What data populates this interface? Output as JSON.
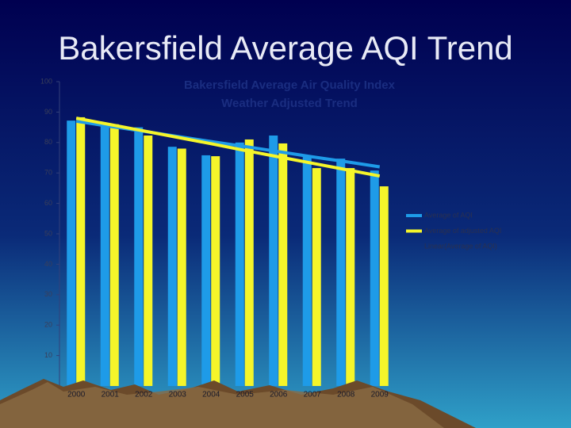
{
  "slide_title": "Bakersfield Average AQI Trend",
  "chart_data": {
    "type": "bar",
    "title": "Bakersfield Average Air Quality Index",
    "subtitle": "Weather Adjusted Trend",
    "categories": [
      "2000",
      "2001",
      "2002",
      "2003",
      "2004",
      "2005",
      "2006",
      "2007",
      "2008",
      "2009"
    ],
    "series": [
      {
        "name": "Average of AQI",
        "color": "#1e9be8",
        "type": "bar",
        "values": [
          87.2,
          85.7,
          85,
          78.6,
          75.8,
          80,
          82.3,
          75.5,
          74.7,
          70.8
        ]
      },
      {
        "name": "Average of adjusted AQI",
        "color": "#f5f52a",
        "type": "bar",
        "values": [
          88.3,
          86,
          82.3,
          78,
          75.5,
          81,
          79.7,
          71.6,
          71.6,
          65.6
        ]
      },
      {
        "name": "Linear(Average of AQI)",
        "color": "#1e9be8",
        "type": "line",
        "values": [
          87,
          85.3,
          83.7,
          82,
          80.3,
          78.7,
          77,
          75.3,
          73.7,
          72
        ]
      },
      {
        "color": "#f5f52a",
        "type": "line",
        "values": [
          88,
          85.9,
          83.8,
          81.7,
          79.6,
          77.4,
          75.3,
          73.2,
          71.1,
          69
        ]
      }
    ],
    "ylim": [
      0,
      100
    ],
    "yticks": [
      10,
      20,
      30,
      40,
      50,
      60,
      70,
      80,
      90,
      100
    ],
    "grid": false
  }
}
